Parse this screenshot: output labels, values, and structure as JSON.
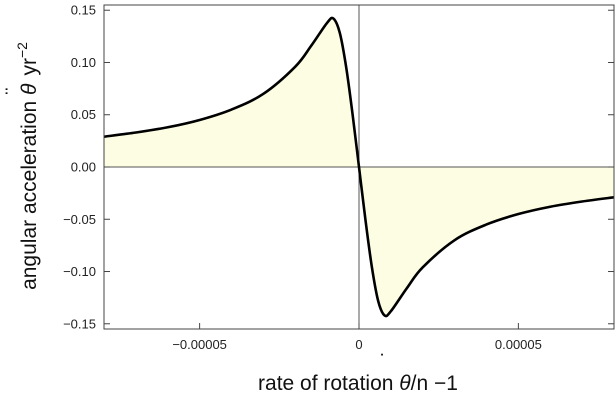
{
  "chart_data": {
    "type": "area",
    "title": "",
    "xlabel": {
      "prefix": "rate of rotation ",
      "symbol": "θ",
      "suffix": "/n −1"
    },
    "ylabel": {
      "prefix": "angular acceleration ",
      "symbol": "θ",
      "unit": "yr",
      "exponent": "−2"
    },
    "xlim": [
      -8e-05,
      8e-05
    ],
    "ylim": [
      -0.155,
      0.155
    ],
    "x_ticks": [
      {
        "value": -5e-05,
        "label": "−0.00005"
      },
      {
        "value": 0,
        "label": "0"
      },
      {
        "value": 5e-05,
        "label": "0.00005"
      }
    ],
    "y_ticks": [
      {
        "value": 0.15,
        "label": "0.15"
      },
      {
        "value": 0.1,
        "label": "0.10"
      },
      {
        "value": 0.05,
        "label": "0.05"
      },
      {
        "value": 0.0,
        "label": "0.00"
      },
      {
        "value": -0.05,
        "label": "−0.05"
      },
      {
        "value": -0.1,
        "label": "−0.10"
      },
      {
        "value": -0.15,
        "label": "−0.15"
      }
    ],
    "series": [
      {
        "x": [
          -8e-05,
          -7e-05,
          -6e-05,
          -5e-05,
          -4e-05,
          -3e-05,
          -2e-05,
          -1.5e-05,
          -1e-05,
          -8e-06,
          -6e-06,
          -4e-06,
          -2e-06,
          0,
          2e-06,
          4e-06,
          6e-06,
          8e-06,
          1e-05,
          1.5e-05,
          2e-05,
          3e-05,
          4e-05,
          5e-05,
          6e-05,
          7e-05,
          8e-05
        ],
        "y": [
          0.029,
          0.033,
          0.038,
          0.045,
          0.055,
          0.07,
          0.096,
          0.116,
          0.138,
          0.142,
          0.128,
          0.095,
          0.05,
          0.0,
          -0.05,
          -0.095,
          -0.128,
          -0.142,
          -0.138,
          -0.116,
          -0.096,
          -0.07,
          -0.055,
          -0.045,
          -0.038,
          -0.033,
          -0.029
        ]
      }
    ],
    "fill": "to-zero",
    "colors": {
      "line": "#000000",
      "fill": "#fdfde3",
      "axis": "#444444",
      "zero_line": "#555555"
    },
    "grid": false,
    "frame": true
  }
}
